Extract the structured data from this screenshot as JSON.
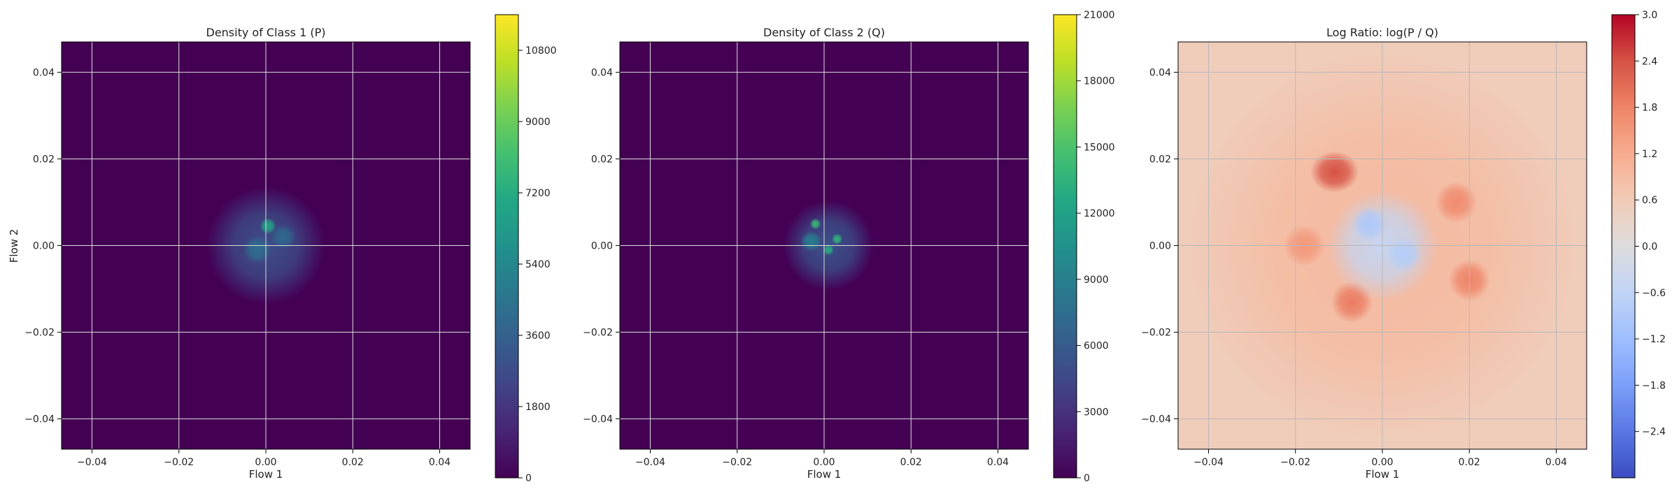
{
  "chart_data": [
    {
      "type": "heatmap",
      "title": "Density of Class 1 (P)",
      "xlabel": "Flow 1",
      "ylabel": "Flow 2",
      "xlim": [
        -0.047,
        0.047
      ],
      "ylim": [
        -0.047,
        0.047
      ],
      "x_ticks": [
        -0.04,
        -0.02,
        0.0,
        0.02,
        0.04
      ],
      "y_ticks": [
        -0.04,
        -0.02,
        0.0,
        0.02,
        0.04
      ],
      "x_tick_labels": [
        "−0.04",
        "−0.02",
        "0.00",
        "0.02",
        "0.04"
      ],
      "y_tick_labels": [
        "−0.04",
        "−0.02",
        "0.00",
        "0.02",
        "0.04"
      ],
      "grid": true,
      "colormap": "viridis",
      "background_color": "#440154",
      "colorbar": {
        "min": 0,
        "max": 11700,
        "ticks": [
          0,
          1800,
          3600,
          5400,
          7200,
          9000,
          10800
        ],
        "tick_labels": [
          "0",
          "1800",
          "3600",
          "5400",
          "7200",
          "9000",
          "10800"
        ]
      },
      "blobs": [
        {
          "x": 0.0,
          "y": 0.0,
          "sx": 0.0085,
          "sy": 0.0085,
          "value": 2800
        },
        {
          "x": 0.0005,
          "y": 0.0045,
          "sx": 0.0012,
          "sy": 0.0012,
          "value": 6800
        },
        {
          "x": -0.002,
          "y": -0.001,
          "sx": 0.002,
          "sy": 0.002,
          "value": 4200
        },
        {
          "x": 0.004,
          "y": 0.002,
          "sx": 0.0018,
          "sy": 0.0018,
          "value": 4000
        }
      ]
    },
    {
      "type": "heatmap",
      "title": "Density of Class 2 (Q)",
      "xlabel": "Flow 1",
      "ylabel": "",
      "xlim": [
        -0.047,
        0.047
      ],
      "ylim": [
        -0.047,
        0.047
      ],
      "x_ticks": [
        -0.04,
        -0.02,
        0.0,
        0.02,
        0.04
      ],
      "y_ticks": [
        -0.04,
        -0.02,
        0.0,
        0.02,
        0.04
      ],
      "x_tick_labels": [
        "−0.04",
        "−0.02",
        "0.00",
        "0.02",
        "0.04"
      ],
      "y_tick_labels": [
        "−0.04",
        "−0.02",
        "0.00",
        "0.02",
        "0.04"
      ],
      "grid": true,
      "colormap": "viridis",
      "background_color": "#440154",
      "colorbar": {
        "min": 0,
        "max": 21000,
        "ticks": [
          0,
          3000,
          6000,
          9000,
          12000,
          15000,
          18000,
          21000
        ],
        "tick_labels": [
          "0",
          "3000",
          "6000",
          "9000",
          "12000",
          "15000",
          "18000",
          "21000"
        ]
      },
      "blobs": [
        {
          "x": 0.001,
          "y": 0.0,
          "sx": 0.0065,
          "sy": 0.0065,
          "value": 5200
        },
        {
          "x": -0.002,
          "y": 0.005,
          "sx": 0.0008,
          "sy": 0.0008,
          "value": 14000
        },
        {
          "x": 0.003,
          "y": 0.0015,
          "sx": 0.0008,
          "sy": 0.0008,
          "value": 13500
        },
        {
          "x": 0.001,
          "y": -0.001,
          "sx": 0.0008,
          "sy": 0.0008,
          "value": 13000
        },
        {
          "x": -0.003,
          "y": 0.001,
          "sx": 0.0015,
          "sy": 0.0015,
          "value": 9000
        }
      ]
    },
    {
      "type": "heatmap",
      "title": "Log Ratio: log(P / Q)",
      "xlabel": "Flow 1",
      "ylabel": "",
      "xlim": [
        -0.047,
        0.047
      ],
      "ylim": [
        -0.047,
        0.047
      ],
      "x_ticks": [
        -0.04,
        -0.02,
        0.0,
        0.02,
        0.04
      ],
      "y_ticks": [
        -0.04,
        -0.02,
        0.0,
        0.02,
        0.04
      ],
      "x_tick_labels": [
        "−0.04",
        "−0.02",
        "0.00",
        "0.02",
        "0.04"
      ],
      "y_tick_labels": [
        "−0.04",
        "−0.02",
        "0.00",
        "0.02",
        "0.04"
      ],
      "grid": true,
      "colormap": "coolwarm",
      "background_value": 0.55,
      "colorbar": {
        "min": -3.0,
        "max": 3.0,
        "ticks": [
          -2.4,
          -1.8,
          -1.2,
          -0.6,
          0.0,
          0.6,
          1.2,
          1.8,
          2.4,
          3.0
        ],
        "tick_labels": [
          "−2.4",
          "−1.8",
          "−1.2",
          "−0.6",
          "0.0",
          "0.6",
          "1.2",
          "1.8",
          "2.4",
          "3.0"
        ]
      },
      "regions": [
        {
          "x": 0.0,
          "y": 0.0,
          "sx": 0.028,
          "sy": 0.028,
          "value": 0.95
        },
        {
          "x": -0.011,
          "y": 0.017,
          "sx": 0.0035,
          "sy": 0.003,
          "value": 2.4
        },
        {
          "x": -0.007,
          "y": -0.013,
          "sx": 0.003,
          "sy": 0.003,
          "value": 1.9
        },
        {
          "x": 0.02,
          "y": -0.008,
          "sx": 0.003,
          "sy": 0.003,
          "value": 1.8
        },
        {
          "x": 0.017,
          "y": 0.01,
          "sx": 0.003,
          "sy": 0.003,
          "value": 1.7
        },
        {
          "x": -0.018,
          "y": 0.0,
          "sx": 0.003,
          "sy": 0.003,
          "value": 1.5
        },
        {
          "x": 0.0,
          "y": 0.0,
          "sx": 0.008,
          "sy": 0.008,
          "value": -0.5
        },
        {
          "x": -0.003,
          "y": 0.005,
          "sx": 0.0025,
          "sy": 0.0025,
          "value": -0.9
        },
        {
          "x": 0.005,
          "y": -0.002,
          "sx": 0.0025,
          "sy": 0.0025,
          "value": -0.8
        }
      ]
    }
  ]
}
